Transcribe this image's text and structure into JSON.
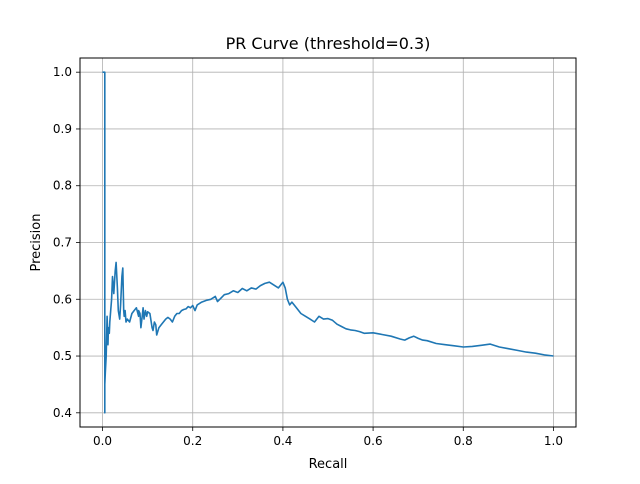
{
  "chart_data": {
    "type": "line",
    "title": "PR Curve (threshold=0.3)",
    "xlabel": "Recall",
    "ylabel": "Precision",
    "xlim": [
      -0.05,
      1.05
    ],
    "ylim": [
      0.375,
      1.025
    ],
    "xticks": [
      0.0,
      0.2,
      0.4,
      0.6,
      0.8,
      1.0
    ],
    "xtick_labels": [
      "0.0",
      "0.2",
      "0.4",
      "0.6",
      "0.8",
      "1.0"
    ],
    "yticks": [
      0.4,
      0.5,
      0.6,
      0.7,
      0.8,
      0.9,
      1.0
    ],
    "ytick_labels": [
      "0.4",
      "0.5",
      "0.6",
      "0.7",
      "0.8",
      "0.9",
      "1.0"
    ],
    "grid": true,
    "line_color": "#1f77b4",
    "series": [
      {
        "x": [
          0.0,
          0.005,
          0.005,
          0.005,
          0.006,
          0.008,
          0.01,
          0.012,
          0.013,
          0.015,
          0.016,
          0.018,
          0.02,
          0.022,
          0.025,
          0.028,
          0.03,
          0.033,
          0.035,
          0.038,
          0.04,
          0.043,
          0.045,
          0.047,
          0.048,
          0.05,
          0.052,
          0.055,
          0.06,
          0.065,
          0.07,
          0.075,
          0.08,
          0.08,
          0.083,
          0.085,
          0.088,
          0.09,
          0.092,
          0.095,
          0.098,
          0.1,
          0.105,
          0.11,
          0.112,
          0.115,
          0.118,
          0.12,
          0.125,
          0.13,
          0.135,
          0.14,
          0.145,
          0.15,
          0.155,
          0.16,
          0.165,
          0.17,
          0.175,
          0.18,
          0.185,
          0.19,
          0.195,
          0.2,
          0.205,
          0.21,
          0.22,
          0.23,
          0.24,
          0.25,
          0.255,
          0.26,
          0.27,
          0.28,
          0.29,
          0.3,
          0.31,
          0.32,
          0.33,
          0.34,
          0.35,
          0.36,
          0.37,
          0.38,
          0.39,
          0.4,
          0.405,
          0.41,
          0.415,
          0.42,
          0.43,
          0.44,
          0.45,
          0.46,
          0.47,
          0.48,
          0.49,
          0.5,
          0.51,
          0.52,
          0.53,
          0.54,
          0.55,
          0.56,
          0.57,
          0.58,
          0.6,
          0.62,
          0.64,
          0.66,
          0.67,
          0.68,
          0.69,
          0.7,
          0.71,
          0.72,
          0.74,
          0.76,
          0.78,
          0.8,
          0.82,
          0.84,
          0.86,
          0.88,
          0.9,
          0.92,
          0.94,
          0.96,
          0.98,
          1.0
        ],
        "y": [
          1.0,
          1.0,
          0.4,
          0.45,
          0.47,
          0.5,
          0.57,
          0.52,
          0.55,
          0.54,
          0.56,
          0.58,
          0.6,
          0.64,
          0.61,
          0.65,
          0.665,
          0.62,
          0.58,
          0.565,
          0.59,
          0.64,
          0.655,
          0.58,
          0.57,
          0.58,
          0.56,
          0.565,
          0.56,
          0.575,
          0.58,
          0.585,
          0.57,
          0.58,
          0.575,
          0.55,
          0.57,
          0.585,
          0.565,
          0.58,
          0.57,
          0.578,
          0.575,
          0.55,
          0.545,
          0.56,
          0.555,
          0.537,
          0.55,
          0.555,
          0.56,
          0.565,
          0.568,
          0.565,
          0.56,
          0.57,
          0.575,
          0.575,
          0.58,
          0.582,
          0.583,
          0.587,
          0.585,
          0.589,
          0.58,
          0.59,
          0.595,
          0.598,
          0.6,
          0.605,
          0.596,
          0.6,
          0.608,
          0.61,
          0.615,
          0.612,
          0.619,
          0.615,
          0.62,
          0.618,
          0.624,
          0.628,
          0.63,
          0.625,
          0.62,
          0.63,
          0.62,
          0.6,
          0.59,
          0.595,
          0.585,
          0.575,
          0.57,
          0.565,
          0.56,
          0.57,
          0.565,
          0.566,
          0.563,
          0.556,
          0.552,
          0.548,
          0.546,
          0.545,
          0.543,
          0.54,
          0.541,
          0.538,
          0.535,
          0.53,
          0.528,
          0.532,
          0.535,
          0.531,
          0.528,
          0.527,
          0.522,
          0.52,
          0.518,
          0.516,
          0.517,
          0.519,
          0.521,
          0.516,
          0.513,
          0.51,
          0.507,
          0.505,
          0.502,
          0.5
        ]
      }
    ]
  }
}
